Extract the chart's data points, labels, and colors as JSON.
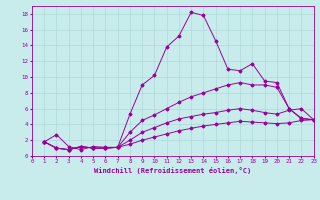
{
  "xlabel": "Windchill (Refroidissement éolien,°C)",
  "background_color": "#c8ecec",
  "grid_color": "#b0d8d8",
  "line_color": "#990099",
  "xlim": [
    0,
    23
  ],
  "ylim": [
    0,
    19
  ],
  "xticks": [
    0,
    1,
    2,
    3,
    4,
    5,
    6,
    7,
    8,
    9,
    10,
    11,
    12,
    13,
    14,
    15,
    16,
    17,
    18,
    19,
    20,
    21,
    22,
    23
  ],
  "yticks": [
    0,
    2,
    4,
    6,
    8,
    10,
    12,
    14,
    16,
    18
  ],
  "x_vals": [
    1,
    2,
    3,
    4,
    5,
    6,
    7,
    8,
    9,
    10,
    11,
    12,
    13,
    14,
    15,
    16,
    17,
    18,
    19,
    20,
    21,
    22,
    23
  ],
  "series": [
    [
      1.8,
      2.7,
      1.2,
      0.8,
      1.2,
      1.1,
      1.1,
      5.3,
      9.0,
      10.2,
      13.8,
      15.2,
      18.2,
      17.8,
      14.6,
      11.0,
      10.8,
      11.7,
      9.5,
      9.3,
      6.0,
      4.7,
      4.6
    ],
    [
      1.8,
      1.0,
      0.8,
      1.2,
      1.0,
      1.0,
      1.1,
      3.0,
      4.5,
      5.2,
      6.0,
      6.8,
      7.5,
      8.0,
      8.5,
      9.0,
      9.3,
      9.0,
      9.0,
      8.7,
      6.0,
      4.8,
      4.6
    ],
    [
      1.8,
      1.0,
      0.8,
      1.2,
      1.0,
      1.0,
      1.1,
      2.0,
      3.0,
      3.6,
      4.2,
      4.7,
      5.0,
      5.3,
      5.5,
      5.8,
      6.0,
      5.8,
      5.5,
      5.3,
      5.8,
      6.0,
      4.6
    ],
    [
      1.8,
      1.0,
      0.8,
      1.2,
      1.0,
      1.0,
      1.1,
      1.5,
      2.0,
      2.4,
      2.8,
      3.2,
      3.5,
      3.8,
      4.0,
      4.2,
      4.4,
      4.3,
      4.2,
      4.1,
      4.2,
      4.5,
      4.6
    ]
  ],
  "tick_fontsize": 4.2,
  "xlabel_fontsize": 5.0,
  "marker_size": 1.5,
  "line_width": 0.7
}
